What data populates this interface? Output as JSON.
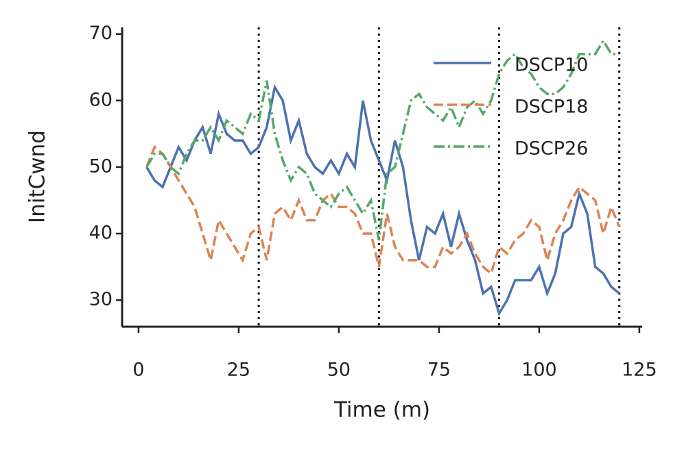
{
  "chart_data": {
    "type": "line",
    "xlabel": "Time (m)",
    "ylabel": "InitCwnd",
    "x": [
      2,
      4,
      6,
      8,
      10,
      12,
      14,
      16,
      18,
      20,
      22,
      24,
      26,
      28,
      30,
      32,
      34,
      36,
      38,
      40,
      42,
      44,
      46,
      48,
      50,
      52,
      54,
      56,
      58,
      60,
      62,
      64,
      66,
      68,
      70,
      72,
      74,
      76,
      78,
      80,
      82,
      84,
      86,
      88,
      90,
      92,
      94,
      96,
      98,
      100,
      102,
      104,
      106,
      108,
      110,
      112,
      114,
      116,
      118,
      120
    ],
    "series": [
      {
        "name": "DSCP10",
        "color": "#4c72b0",
        "linestyle": "solid",
        "values": [
          50,
          48,
          47,
          50,
          53,
          51,
          54,
          56,
          52,
          58,
          55,
          54,
          54,
          52,
          53,
          56,
          62,
          60,
          54,
          57,
          52,
          50,
          49,
          51,
          49,
          52,
          50,
          60,
          54,
          51,
          48,
          54,
          50,
          42,
          36,
          41,
          40,
          43,
          38,
          43,
          39,
          36,
          31,
          32,
          28,
          30,
          33,
          33,
          33,
          35,
          31,
          34,
          40,
          41,
          46,
          43,
          35,
          34,
          32,
          31
        ]
      },
      {
        "name": "DSCP18",
        "color": "#dd8452",
        "linestyle": "dashed",
        "values": [
          50,
          53,
          52,
          50,
          48,
          46,
          44,
          40,
          36,
          42,
          40,
          38,
          36,
          40,
          41,
          36,
          43,
          44,
          42,
          45,
          42,
          42,
          45,
          46,
          44,
          44,
          43,
          40,
          40,
          35,
          43,
          38,
          36,
          36,
          36,
          35,
          35,
          38,
          37,
          38,
          40,
          37,
          35,
          34,
          38,
          37,
          39,
          40,
          42,
          41,
          36,
          40,
          42,
          45,
          47,
          46,
          45,
          40,
          44,
          41
        ]
      },
      {
        "name": "DSCP26",
        "color": "#55a868",
        "linestyle": "dashdot",
        "values": [
          50,
          52,
          52,
          50,
          49,
          52,
          54,
          54,
          56,
          54,
          57,
          56,
          55,
          58,
          57,
          63,
          55,
          51,
          48,
          50,
          49,
          46,
          45,
          44,
          46,
          47,
          45,
          43,
          45,
          39,
          49,
          50,
          55,
          60,
          61,
          59,
          58,
          57,
          59,
          56,
          59,
          60,
          58,
          60,
          64,
          66,
          67,
          65,
          64,
          62,
          61,
          61,
          62,
          64,
          67,
          67,
          67,
          69,
          67,
          67
        ]
      }
    ],
    "vlines": [
      30,
      60,
      90,
      120
    ],
    "xlim": [
      -4.1,
      125.7
    ],
    "ylim": [
      26,
      71
    ],
    "xticks": [
      0,
      25,
      50,
      75,
      100,
      125
    ],
    "yticks": [
      30,
      40,
      50,
      60,
      70
    ],
    "legend": "upper right"
  }
}
